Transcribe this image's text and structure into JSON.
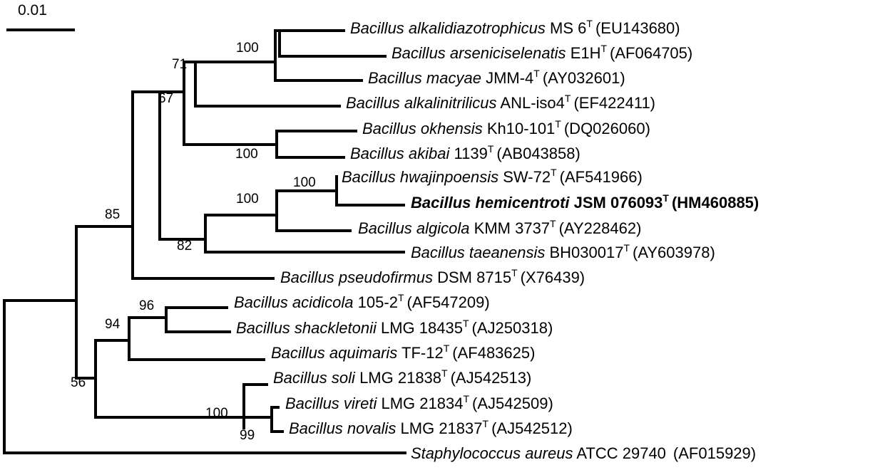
{
  "scale_bar": {
    "label": "0.01"
  },
  "taxa": [
    {
      "id": "alkalidiazotrophicus",
      "species": "Bacillus alkalidiazotrophicus",
      "strain": "MS 6",
      "type_mark": "T",
      "accession": "(EU143680)",
      "highlight": false
    },
    {
      "id": "arseniciselenatis",
      "species": "Bacillus arseniciselenatis",
      "strain": "E1H",
      "type_mark": "T",
      "accession": "(AF064705)",
      "highlight": false
    },
    {
      "id": "macyae",
      "species": "Bacillus macyae",
      "strain": "JMM-4",
      "type_mark": "T",
      "accession": "(AY032601)",
      "highlight": false
    },
    {
      "id": "alkalinitrilicus",
      "species": "Bacillus alkalinitrilicus",
      "strain": "ANL-iso4",
      "type_mark": "T",
      "accession": "(EF422411)",
      "highlight": false
    },
    {
      "id": "okhensis",
      "species": "Bacillus okhensis",
      "strain": "Kh10-101",
      "type_mark": "T",
      "accession": "(DQ026060)",
      "highlight": false
    },
    {
      "id": "akibai",
      "species": "Bacillus akibai",
      "strain": "1139",
      "type_mark": "T",
      "accession": "(AB043858)",
      "highlight": false
    },
    {
      "id": "hwajinpoensis",
      "species": "Bacillus hwajinpoensis",
      "strain": "SW-72",
      "type_mark": "T",
      "accession": "(AF541966)",
      "highlight": false
    },
    {
      "id": "hemicentroti",
      "species": "Bacillus hemicentroti",
      "strain": "JSM 076093",
      "type_mark": "T",
      "accession": "(HM460885)",
      "highlight": true
    },
    {
      "id": "algicola",
      "species": "Bacillus algicola",
      "strain": "KMM 3737",
      "type_mark": "T",
      "accession": "(AY228462)",
      "highlight": false
    },
    {
      "id": "taeanensis",
      "species": "Bacillus taeanensis",
      "strain": "BH030017",
      "type_mark": "T",
      "accession": "(AY603978)",
      "highlight": false
    },
    {
      "id": "pseudofirmus",
      "species": "Bacillus pseudofirmus",
      "strain": "DSM 8715",
      "type_mark": "T",
      "accession": "(X76439)",
      "highlight": false
    },
    {
      "id": "acidicola",
      "species": "Bacillus acidicola",
      "strain": "105-2",
      "type_mark": "T",
      "accession": "(AF547209)",
      "highlight": false
    },
    {
      "id": "shackletonii",
      "species": "Bacillus shackletonii",
      "strain": "LMG 18435",
      "type_mark": "T",
      "accession": "(AJ250318)",
      "highlight": false
    },
    {
      "id": "aquimaris",
      "species": "Bacillus aquimaris",
      "strain": "TF-12",
      "type_mark": "T",
      "accession": "(AF483625)",
      "highlight": false
    },
    {
      "id": "soli",
      "species": "Bacillus soli",
      "strain": "LMG 21838",
      "type_mark": "T",
      "accession": "(AJ542513)",
      "highlight": false
    },
    {
      "id": "vireti",
      "species": "Bacillus vireti",
      "strain": "LMG 21834",
      "type_mark": "T",
      "accession": "(AJ542509)",
      "highlight": false
    },
    {
      "id": "novalis",
      "species": "Bacillus novalis",
      "strain": "LMG 21837",
      "type_mark": "T",
      "accession": "(AJ542512)",
      "highlight": false
    },
    {
      "id": "staph",
      "species": "Staphylococcus aureus",
      "strain": "ATCC 29740",
      "type_mark": "",
      "accession": "(AF015929)",
      "highlight": false
    }
  ],
  "bootstrap_values": {
    "alkali_clade": "100",
    "alkali_group": "71",
    "upper_group": "67",
    "okhensis_akibai": "100",
    "hwajin_hemi": "100",
    "hemi_algicola": "100",
    "hemi_taeanensis": "82",
    "main_clade": "85",
    "acidicola_shackletonii": "96",
    "acidicola_aquimaris": "94",
    "soli_group": "100",
    "vireti_novalis": "99",
    "lower_group": "56"
  }
}
